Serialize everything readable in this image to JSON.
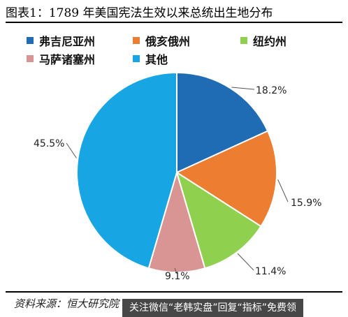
{
  "title": "图表1：1789 年美国宪法生效以来总统出生地分布",
  "source": "资料来源：恒大研究院",
  "watermark": "关注微信“老韩实盘”回复“指标”免费领",
  "chart_data": {
    "type": "pie",
    "title": "图表1：1789 年美国宪法生效以来总统出生地分布",
    "slices": [
      {
        "label": "弗吉尼亚州",
        "value": 18.2,
        "display": "18.2%",
        "color": "#1f6cb5"
      },
      {
        "label": "俄亥俄州",
        "value": 15.9,
        "display": "15.9%",
        "color": "#ec7d31"
      },
      {
        "label": "纽约州",
        "value": 11.4,
        "display": "11.4%",
        "color": "#8fd04f"
      },
      {
        "label": "马萨诸塞州",
        "value": 9.1,
        "display": "9.1%",
        "color": "#d99594"
      },
      {
        "label": "其他",
        "value": 45.5,
        "display": "45.5%",
        "color": "#17a5e3"
      }
    ],
    "start_angle": "12 o'clock",
    "direction": "clockwise",
    "legend_position": "top"
  }
}
